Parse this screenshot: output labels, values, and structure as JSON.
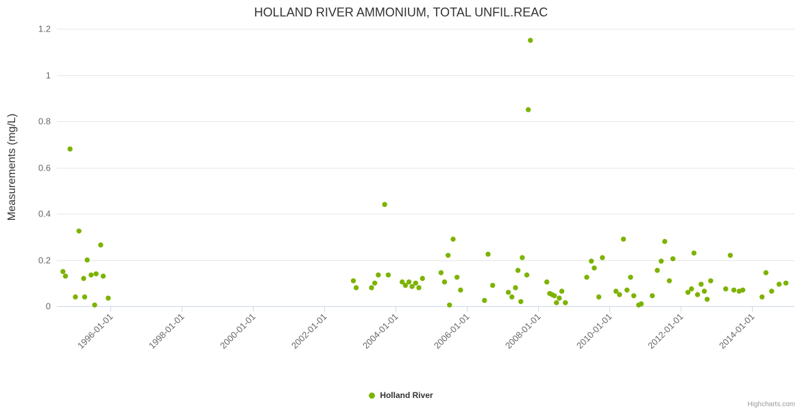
{
  "credits": {
    "label": "Highcharts.com"
  },
  "colors": {
    "point": "#7db300",
    "grid": "#e6e6e6",
    "axis_line": "#ccd6eb",
    "title_text": "#333333",
    "tick_text": "#666666"
  },
  "chart_data": {
    "type": "scatter",
    "title": "HOLLAND RIVER AMMONIUM, TOTAL UNFIL.REAC",
    "xlabel": "",
    "ylabel": "Measurements (mg/L)",
    "ylim": [
      0,
      1.2
    ],
    "yticks": [
      0,
      0.2,
      0.4,
      0.6,
      0.8,
      1,
      1.2
    ],
    "ytick_labels": [
      "0",
      "0.2",
      "0.4",
      "0.6",
      "0.8",
      "1",
      "1.2"
    ],
    "xlim_years": [
      1994.5,
      2015.2
    ],
    "xtick_years": [
      1996,
      1998,
      2000,
      2002,
      2004,
      2006,
      2008,
      2010,
      2012,
      2014
    ],
    "xtick_labels": [
      "1996-01-01",
      "1998-01-01",
      "2000-01-01",
      "2002-01-01",
      "2004-01-01",
      "2006-01-01",
      "2008-01-01",
      "2010-01-01",
      "2012-01-01",
      "2014-01-01"
    ],
    "grid": "horizontal",
    "legend_position": "bottom",
    "series": [
      {
        "name": "Holland River",
        "color": "#7db300",
        "marker": "circle",
        "points": [
          [
            1994.67,
            0.15
          ],
          [
            1994.74,
            0.13
          ],
          [
            1994.87,
            0.68
          ],
          [
            1995.02,
            0.04
          ],
          [
            1995.12,
            0.325
          ],
          [
            1995.25,
            0.12
          ],
          [
            1995.28,
            0.04
          ],
          [
            1995.35,
            0.2
          ],
          [
            1995.46,
            0.135
          ],
          [
            1995.56,
            0.005
          ],
          [
            1995.6,
            0.14
          ],
          [
            1995.73,
            0.265
          ],
          [
            1995.8,
            0.13
          ],
          [
            1995.94,
            0.035
          ],
          [
            2002.82,
            0.11
          ],
          [
            2002.9,
            0.08
          ],
          [
            2003.33,
            0.08
          ],
          [
            2003.42,
            0.1
          ],
          [
            2003.52,
            0.135
          ],
          [
            2003.7,
            0.44
          ],
          [
            2003.8,
            0.135
          ],
          [
            2004.19,
            0.105
          ],
          [
            2004.28,
            0.09
          ],
          [
            2004.38,
            0.105
          ],
          [
            2004.47,
            0.085
          ],
          [
            2004.57,
            0.1
          ],
          [
            2004.66,
            0.08
          ],
          [
            2004.76,
            0.12
          ],
          [
            2005.28,
            0.145
          ],
          [
            2005.38,
            0.105
          ],
          [
            2005.48,
            0.22
          ],
          [
            2005.52,
            0.005
          ],
          [
            2005.62,
            0.29
          ],
          [
            2005.73,
            0.125
          ],
          [
            2005.83,
            0.07
          ],
          [
            2006.5,
            0.025
          ],
          [
            2006.6,
            0.225
          ],
          [
            2006.73,
            0.09
          ],
          [
            2007.17,
            0.06
          ],
          [
            2007.27,
            0.04
          ],
          [
            2007.37,
            0.08
          ],
          [
            2007.44,
            0.155
          ],
          [
            2007.52,
            0.02
          ],
          [
            2007.56,
            0.21
          ],
          [
            2007.69,
            0.135
          ],
          [
            2007.73,
            0.85
          ],
          [
            2007.79,
            1.15
          ],
          [
            2008.25,
            0.105
          ],
          [
            2008.33,
            0.055
          ],
          [
            2008.4,
            0.05
          ],
          [
            2008.46,
            0.045
          ],
          [
            2008.52,
            0.015
          ],
          [
            2008.6,
            0.035
          ],
          [
            2008.67,
            0.065
          ],
          [
            2008.77,
            0.015
          ],
          [
            2009.37,
            0.125
          ],
          [
            2009.5,
            0.195
          ],
          [
            2009.58,
            0.165
          ],
          [
            2009.71,
            0.04
          ],
          [
            2009.81,
            0.21
          ],
          [
            2010.19,
            0.065
          ],
          [
            2010.29,
            0.05
          ],
          [
            2010.4,
            0.29
          ],
          [
            2010.5,
            0.07
          ],
          [
            2010.6,
            0.125
          ],
          [
            2010.69,
            0.045
          ],
          [
            2010.83,
            0.005
          ],
          [
            2010.9,
            0.01
          ],
          [
            2011.21,
            0.045
          ],
          [
            2011.35,
            0.155
          ],
          [
            2011.46,
            0.195
          ],
          [
            2011.56,
            0.28
          ],
          [
            2011.69,
            0.11
          ],
          [
            2011.79,
            0.205
          ],
          [
            2012.21,
            0.06
          ],
          [
            2012.31,
            0.075
          ],
          [
            2012.38,
            0.23
          ],
          [
            2012.48,
            0.05
          ],
          [
            2012.58,
            0.095
          ],
          [
            2012.67,
            0.065
          ],
          [
            2012.75,
            0.03
          ],
          [
            2012.85,
            0.11
          ],
          [
            2013.27,
            0.075
          ],
          [
            2013.4,
            0.22
          ],
          [
            2013.5,
            0.07
          ],
          [
            2013.65,
            0.065
          ],
          [
            2013.75,
            0.07
          ],
          [
            2014.29,
            0.04
          ],
          [
            2014.4,
            0.145
          ],
          [
            2014.56,
            0.065
          ],
          [
            2014.77,
            0.095
          ],
          [
            2014.96,
            0.1
          ]
        ]
      }
    ]
  }
}
